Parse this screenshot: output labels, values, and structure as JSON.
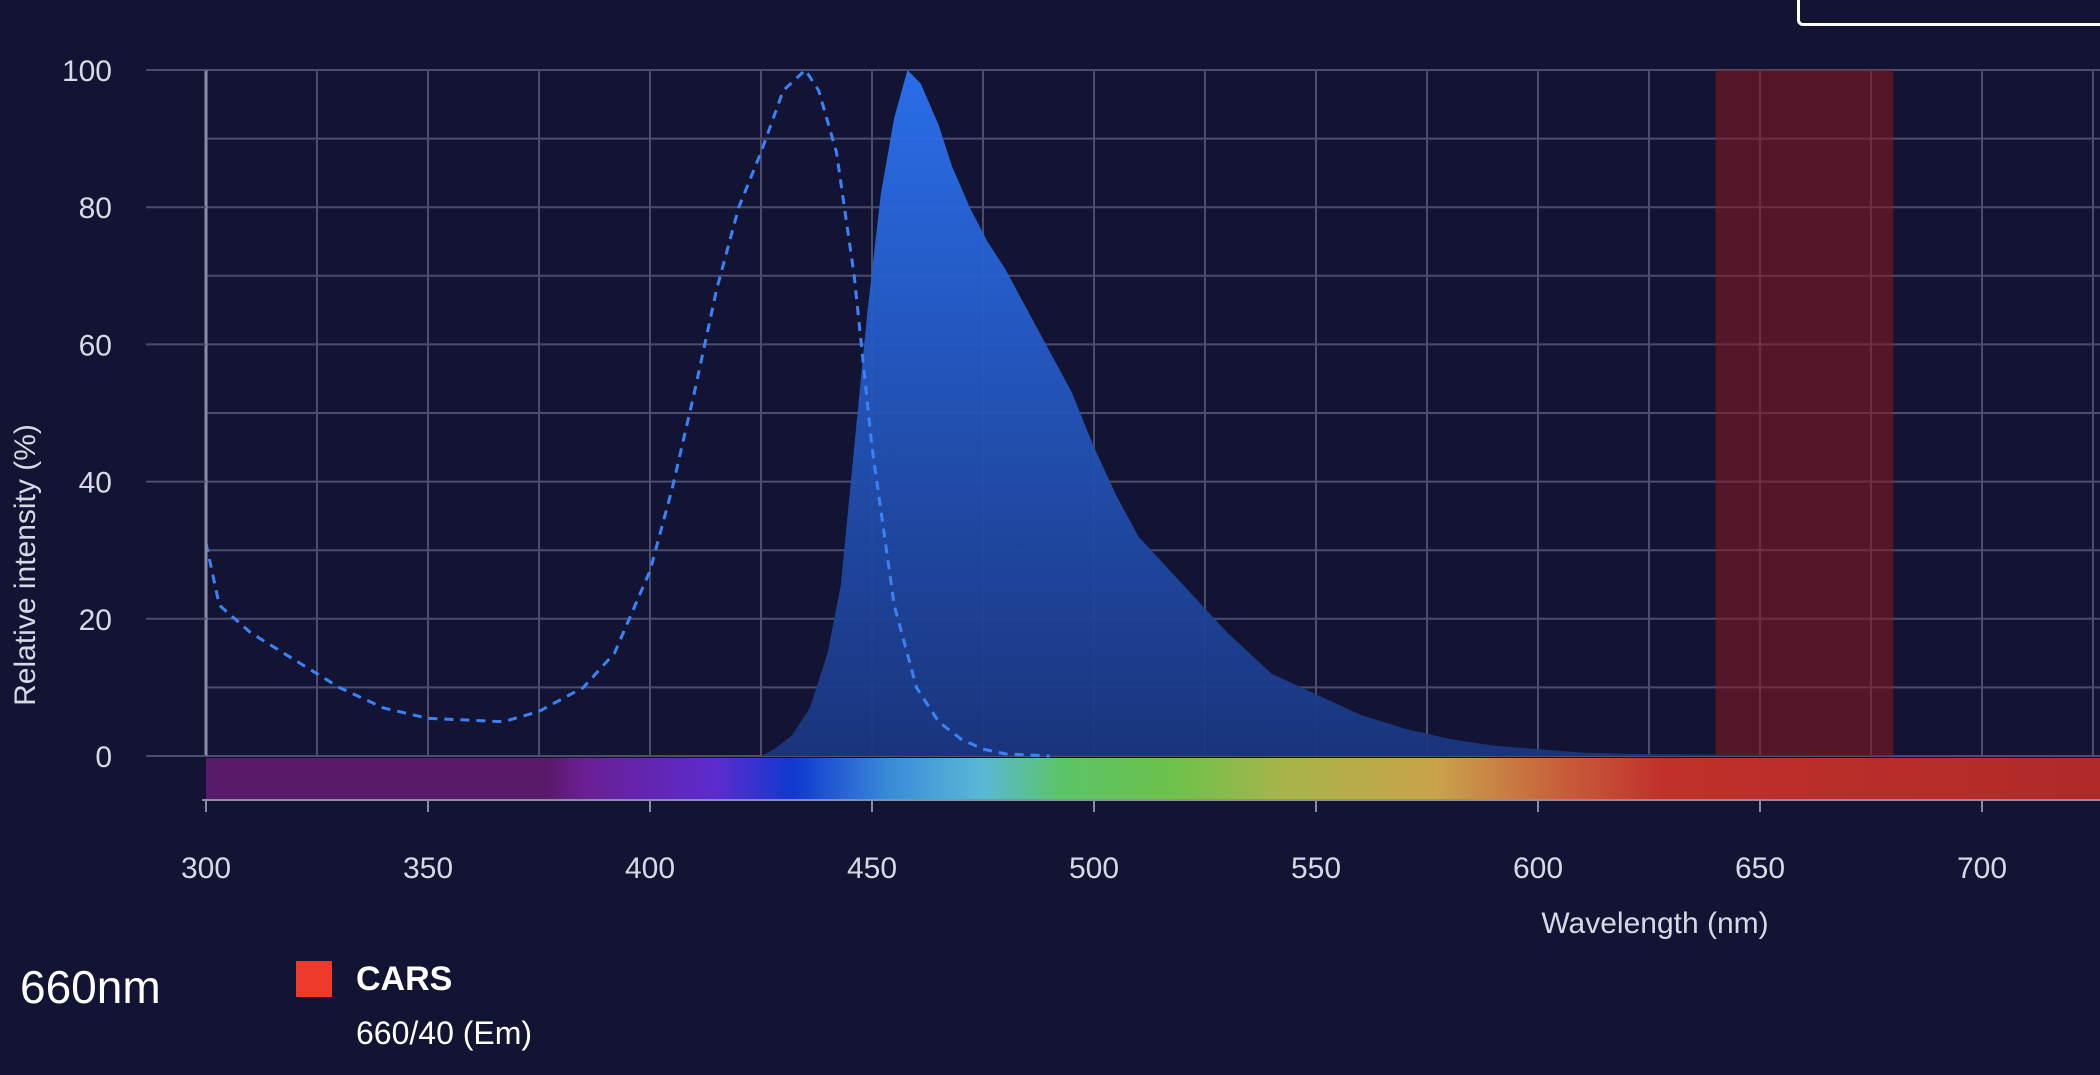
{
  "colors": {
    "background": "#131433",
    "grid": "#4b4d6c",
    "excitation_line": "#3b82f6",
    "emission_fill": "#2f6fe8",
    "filter_band": "#8c1a1f",
    "legend_swatch": "#ee3a2a"
  },
  "readout": {
    "wavelength": "660nm"
  },
  "legend": {
    "name": "CARS",
    "detail": "660/40 (Em)"
  },
  "chart_data": {
    "type": "area",
    "xlabel": "Wavelength (nm)",
    "ylabel": "Relative intensity (%)",
    "xlim": [
      300,
      725
    ],
    "ylim": [
      0,
      100
    ],
    "x_ticks": [
      300,
      350,
      400,
      450,
      500,
      550,
      600,
      650,
      700
    ],
    "y_ticks": [
      0,
      20,
      40,
      60,
      80,
      100
    ],
    "grid": true,
    "series": [
      {
        "style": "dashed-line",
        "points": [
          [
            300,
            31
          ],
          [
            303,
            22
          ],
          [
            310,
            18
          ],
          [
            320,
            14
          ],
          [
            330,
            10
          ],
          [
            340,
            7
          ],
          [
            350,
            5.5
          ],
          [
            360,
            5.2
          ],
          [
            367,
            5
          ],
          [
            375,
            6.5
          ],
          [
            385,
            10
          ],
          [
            392,
            15
          ],
          [
            400,
            27
          ],
          [
            405,
            39
          ],
          [
            410,
            53
          ],
          [
            415,
            68
          ],
          [
            420,
            80
          ],
          [
            425,
            88
          ],
          [
            430,
            97
          ],
          [
            435,
            100
          ],
          [
            438,
            97
          ],
          [
            442,
            88
          ],
          [
            446,
            70
          ],
          [
            450,
            45
          ],
          [
            455,
            22
          ],
          [
            460,
            10
          ],
          [
            465,
            5
          ],
          [
            470,
            2.5
          ],
          [
            475,
            1
          ],
          [
            480,
            0.3
          ],
          [
            490,
            0
          ]
        ]
      },
      {
        "style": "filled-area",
        "points": [
          [
            425,
            0
          ],
          [
            428,
            1
          ],
          [
            432,
            3
          ],
          [
            436,
            7
          ],
          [
            440,
            15
          ],
          [
            443,
            25
          ],
          [
            446,
            45
          ],
          [
            449,
            65
          ],
          [
            452,
            82
          ],
          [
            455,
            93
          ],
          [
            458,
            100
          ],
          [
            461,
            98
          ],
          [
            465,
            92
          ],
          [
            468,
            86
          ],
          [
            472,
            80
          ],
          [
            476,
            75
          ],
          [
            480,
            71
          ],
          [
            485,
            65
          ],
          [
            490,
            59
          ],
          [
            495,
            53
          ],
          [
            500,
            45
          ],
          [
            505,
            38
          ],
          [
            510,
            32
          ],
          [
            520,
            25
          ],
          [
            530,
            18
          ],
          [
            540,
            12
          ],
          [
            550,
            9
          ],
          [
            560,
            6
          ],
          [
            570,
            4
          ],
          [
            580,
            2.5
          ],
          [
            590,
            1.5
          ],
          [
            600,
            1
          ],
          [
            610,
            0.5
          ],
          [
            620,
            0.3
          ],
          [
            640,
            0.2
          ],
          [
            660,
            0.1
          ],
          [
            680,
            0.05
          ],
          [
            700,
            0
          ],
          [
            725,
            0
          ]
        ]
      }
    ],
    "filter_band": {
      "from": 640,
      "to": 680
    }
  }
}
